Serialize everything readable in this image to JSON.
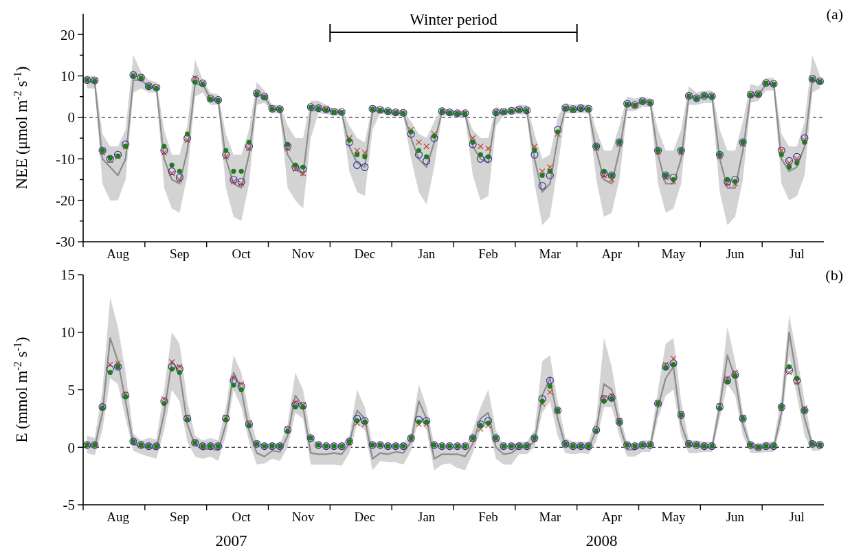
{
  "chart_data": [
    {
      "type": "line",
      "title": "(a)",
      "ylabel": "NEE (μmol m$^{-2}$ s$^{-1}$)",
      "categories": [
        null,
        null,
        null,
        null,
        "Aug",
        null,
        null,
        null,
        null,
        null,
        null,
        null,
        "Sep",
        null,
        null,
        null,
        null,
        null,
        null,
        null,
        "Oct",
        null,
        null,
        null,
        null,
        null,
        null,
        null,
        "Nov",
        null,
        null,
        null,
        null,
        null,
        null,
        null,
        "Dec",
        null,
        null,
        null,
        null,
        null,
        null,
        null,
        "Jan",
        null,
        null,
        null,
        null,
        null,
        null,
        null,
        "Feb",
        null,
        null,
        null,
        null,
        null,
        null,
        null,
        "Mar",
        null,
        null,
        null,
        null,
        null,
        null,
        null,
        "Apr",
        null,
        null,
        null,
        null,
        null,
        null,
        null,
        "May",
        null,
        null,
        null,
        null,
        null,
        null,
        null,
        "Jun",
        null,
        null,
        null,
        null,
        null,
        null,
        null,
        "Jul",
        null,
        null,
        null
      ],
      "ylim": [
        -30,
        25
      ],
      "yticks": [
        -30,
        {
          "value": -25,
          "label": null
        },
        -20,
        {
          "value": -15,
          "label": null
        },
        -10,
        {
          "value": -5,
          "label": null
        },
        0,
        {
          "value": 5,
          "label": null
        },
        10,
        {
          "value": 15,
          "label": null
        },
        20
      ],
      "ref_lines": [
        {
          "axis": "y",
          "value": 0,
          "line_style": "dashed"
        }
      ],
      "annotations": [
        "Winter period"
      ],
      "series": [
        {
          "marker": "none",
          "color": "#8c8c8c",
          "values": [
            8.5,
            8.5,
            -10,
            -12,
            -14,
            -10,
            9,
            9,
            7.5,
            7,
            -10,
            -15,
            -16,
            -8,
            8,
            8,
            4.5,
            4,
            -10,
            -16,
            -17,
            -9,
            5.5,
            5,
            2,
            1.9,
            -9,
            -12,
            -14,
            1.5,
            2,
            1.8,
            1.3,
            1.2,
            -7,
            -11,
            -12,
            1.5,
            1.7,
            1.2,
            1.0,
            1.0,
            -5,
            -10,
            -12,
            -6,
            1.2,
            1.0,
            0.8,
            0.8,
            -7,
            -10,
            -11,
            1,
            1.2,
            1.4,
            1.8,
            1.5,
            -10,
            -18,
            -16,
            -5,
            2,
            1.8,
            2.0,
            2.0,
            -8,
            -15,
            -16,
            -8,
            3,
            3,
            3.8,
            3.5,
            -9,
            -16,
            -16,
            -10,
            5,
            4.5,
            5,
            5,
            -10,
            -17,
            -17,
            -8,
            5.2,
            5.4,
            8,
            8,
            -10,
            -13,
            -12,
            -7,
            9,
            8.5
          ],
          "lower": [
            7,
            7,
            -16,
            -20,
            -20,
            -15,
            6,
            7,
            6,
            6,
            -17,
            -22,
            -23,
            -14,
            5,
            6,
            3,
            3,
            -17,
            -24,
            -25,
            -16,
            3,
            3.5,
            1,
            1,
            -17,
            -20,
            -22,
            -5,
            1,
            0.8,
            0.5,
            0.5,
            -13,
            -18,
            -19,
            -3,
            1,
            0.5,
            0.3,
            0.3,
            -10,
            -18,
            -21,
            -12,
            0.5,
            0.3,
            0,
            0,
            -14,
            -20,
            -19,
            -2,
            0.5,
            0.6,
            0.8,
            0.5,
            -16,
            -26,
            -24,
            -12,
            1,
            1,
            1,
            1,
            -15,
            -24,
            -23,
            -15,
            1.5,
            1.5,
            2.5,
            2.5,
            -16,
            -23,
            -22,
            -16,
            3,
            3,
            3.5,
            3.5,
            -18,
            -26,
            -24,
            -15,
            3.5,
            4,
            6.5,
            6.5,
            -16,
            -20,
            -19,
            -14,
            6,
            7
          ],
          "upper": [
            10,
            10,
            -4,
            -7,
            -7,
            -3,
            15,
            11,
            9,
            8.5,
            -3,
            -9,
            -9,
            -2,
            14,
            9,
            6,
            5.5,
            -4,
            -9,
            -9,
            -3,
            8.5,
            6.5,
            3,
            3,
            -2,
            -5,
            -5,
            4,
            4,
            3,
            2,
            2,
            -2,
            -5,
            -6,
            3,
            2.5,
            2,
            1.8,
            1.8,
            -1,
            -4,
            -5,
            -1,
            2.5,
            1.8,
            1.5,
            1.5,
            -3,
            -5,
            -5,
            2.5,
            2,
            2.2,
            3,
            3,
            -4,
            -10,
            -9,
            0,
            3.5,
            3,
            3.2,
            3,
            -3,
            -8,
            -8,
            -2,
            5,
            4.5,
            5,
            4.5,
            -3,
            -8,
            -8,
            -3,
            7.5,
            6,
            6.5,
            6.5,
            -3,
            -8,
            -8,
            -1,
            8,
            7.5,
            9.5,
            9.5,
            -4,
            -7,
            -7,
            -1,
            15,
            10
          ]
        },
        {
          "type": "scatter",
          "marker": "circle",
          "color": "#2a2a9a",
          "values": [
            9.0,
            8.9,
            -8,
            -10,
            -9,
            -6.5,
            10.2,
            9.6,
            7.5,
            7.2,
            -8,
            -13,
            -14.5,
            -5,
            9,
            8.2,
            4.5,
            4.2,
            -9,
            -15,
            -15.5,
            -7,
            5.8,
            5.0,
            2.1,
            2.0,
            -7,
            -12,
            -12.5,
            2.5,
            2.2,
            1.9,
            1.4,
            1.3,
            -6,
            -11.5,
            -12,
            2.1,
            1.8,
            1.5,
            1.2,
            1.1,
            -4,
            -9,
            -10.5,
            -5,
            1.5,
            1.2,
            1.0,
            1.0,
            -6.5,
            -10,
            -10,
            1.2,
            1.4,
            1.6,
            1.9,
            1.7,
            -9,
            -16.5,
            -14,
            -3,
            2.3,
            2.0,
            2.2,
            2.1,
            -7,
            -13.5,
            -14,
            -6,
            3.3,
            3.0,
            3.9,
            3.6,
            -8,
            -14,
            -14.5,
            -8,
            5.2,
            4.6,
            5.2,
            5.1,
            -9,
            -15.5,
            -15,
            -6,
            5.5,
            5.6,
            8.3,
            8.1,
            -8,
            -10.5,
            -9.5,
            -5,
            9.3,
            8.7
          ]
        },
        {
          "type": "scatter",
          "marker": "cross",
          "color": "#b83a2a",
          "values": [
            9.1,
            9.0,
            -8.5,
            -10.3,
            -9.5,
            -7,
            10.3,
            9.7,
            7.6,
            7.3,
            -8.5,
            -13.5,
            -15,
            -5.5,
            9.5,
            8.3,
            4.5,
            4.2,
            -9.5,
            -15.5,
            -16,
            -7.5,
            5.9,
            5.1,
            2.1,
            2.0,
            -7.5,
            -12.5,
            -13.5,
            2.5,
            2.3,
            2.0,
            1.4,
            1.3,
            -5,
            -8,
            -8.5,
            2.1,
            1.8,
            1.5,
            1.2,
            1.1,
            -3,
            -6,
            -7,
            -4,
            1.5,
            1.2,
            1.0,
            1.0,
            -5,
            -7,
            -7.5,
            1.2,
            1.4,
            1.6,
            1.9,
            1.7,
            -7,
            -13,
            -12,
            -4,
            2.1,
            1.8,
            2.2,
            2.1,
            -7.5,
            -14,
            -15,
            -6.5,
            3.2,
            2.9,
            3.9,
            3.6,
            -8.5,
            -14.5,
            -15.5,
            -8.5,
            5.3,
            4.7,
            5.3,
            5.2,
            -9.5,
            -16,
            -16,
            -6.5,
            5.6,
            5.7,
            8.3,
            8.1,
            -8,
            -11,
            -10,
            -5.5,
            9.4,
            8.8
          ]
        },
        {
          "type": "scatter",
          "marker": "circle",
          "color": "#1e7b1e",
          "values": [
            9.0,
            8.8,
            -8,
            -9.8,
            -9.3,
            -7,
            10,
            9.5,
            7.4,
            7.0,
            -7,
            -11.5,
            -13,
            -4,
            8.5,
            8.0,
            4.4,
            4.1,
            -8,
            -13,
            -13,
            -6,
            5.7,
            4.9,
            2.0,
            1.9,
            -6.5,
            -11.5,
            -12,
            2.4,
            2.1,
            1.8,
            1.3,
            1.2,
            -5.5,
            -9,
            -9.5,
            2.0,
            1.7,
            1.4,
            1.1,
            1.0,
            -3.5,
            -8,
            -9.5,
            -4.5,
            1.4,
            1.1,
            0.9,
            0.9,
            -6,
            -9,
            -9.5,
            1.1,
            1.3,
            1.5,
            1.8,
            1.6,
            -8,
            -14,
            -13,
            -3.5,
            2.2,
            1.9,
            2.1,
            2.0,
            -7,
            -13,
            -14,
            -6,
            3.2,
            2.9,
            3.8,
            3.5,
            -8,
            -14,
            -15,
            -8,
            5.1,
            4.5,
            5.2,
            5.0,
            -9,
            -15,
            -15.5,
            -6,
            5.4,
            5.5,
            8.2,
            8.0,
            -9,
            -12,
            -11,
            -6,
            9.2,
            8.6
          ]
        }
      ]
    },
    {
      "type": "line",
      "title": "(b)",
      "ylabel": "E (mmol m$^{-2}$ s$^{-1}$)",
      "categories": [
        null,
        null,
        null,
        null,
        "Aug",
        null,
        null,
        null,
        null,
        null,
        null,
        null,
        "Sep",
        null,
        null,
        null,
        null,
        null,
        null,
        null,
        "Oct",
        null,
        null,
        null,
        null,
        null,
        null,
        null,
        "Nov",
        null,
        null,
        null,
        null,
        null,
        null,
        null,
        "Dec",
        null,
        null,
        null,
        null,
        null,
        null,
        null,
        "Jan",
        null,
        null,
        null,
        null,
        null,
        null,
        null,
        "Feb",
        null,
        null,
        null,
        null,
        null,
        null,
        null,
        "Mar",
        null,
        null,
        null,
        null,
        null,
        null,
        null,
        "Apr",
        null,
        null,
        null,
        null,
        null,
        null,
        null,
        "May",
        null,
        null,
        null,
        null,
        null,
        null,
        null,
        "Jun",
        null,
        null,
        null,
        null,
        null,
        null,
        null,
        "Jul",
        null,
        null,
        null
      ],
      "ylim": [
        -5,
        15
      ],
      "yticks": [
        -5,
        0,
        5,
        10,
        15
      ],
      "ref_lines": [
        {
          "axis": "y",
          "value": 0,
          "line_style": "dashed"
        }
      ],
      "annotations": [
        "2007",
        "2008"
      ],
      "series": [
        {
          "marker": "none",
          "color": "#8c8c8c",
          "values": [
            0.1,
            0,
            3,
            9.5,
            7.5,
            4,
            0.3,
            0,
            0,
            -0.2,
            3,
            7.5,
            6.5,
            2,
            0.2,
            -0.2,
            -0.1,
            -0.3,
            2,
            6.5,
            5,
            1.5,
            -0.5,
            -0.8,
            -0.3,
            -0.4,
            1,
            4.5,
            3.5,
            -0.5,
            -0.6,
            -0.6,
            -0.5,
            -0.6,
            0.3,
            3.2,
            2.5,
            -1,
            -0.5,
            -0.6,
            -0.4,
            -0.5,
            0.5,
            4,
            2.5,
            -1,
            -0.6,
            -0.6,
            -0.6,
            -0.8,
            0.3,
            2.5,
            3,
            0,
            -0.6,
            -0.5,
            0,
            0,
            0.5,
            4.5,
            6,
            2.5,
            0.1,
            0,
            0,
            -0.1,
            1.5,
            5.5,
            5,
            2,
            -0.2,
            -0.2,
            0.1,
            0.1,
            3.5,
            6,
            7,
            2,
            0.1,
            0.1,
            0,
            0,
            3.5,
            8,
            6,
            2,
            0,
            -0.1,
            0,
            0,
            3,
            10,
            6,
            2.5,
            0.2,
            0.1
          ],
          "lower": [
            -0.5,
            -0.7,
            1.5,
            6,
            5.5,
            2.5,
            -0.3,
            -0.6,
            -0.8,
            -1,
            1.5,
            5,
            4,
            0.5,
            -0.8,
            -1,
            -0.8,
            -1.2,
            1,
            5,
            3.5,
            0.5,
            -1.5,
            -1.4,
            -1,
            -1.2,
            0,
            3,
            2.5,
            -1.5,
            -1.5,
            -1.5,
            -1.5,
            -1.6,
            -0.5,
            2,
            1.5,
            -2,
            -1.2,
            -1.3,
            -1.3,
            -1.5,
            -0.3,
            2.5,
            1.5,
            -2,
            -1.5,
            -1.4,
            -1.8,
            -2,
            -0.5,
            1.5,
            2,
            -1,
            -1.5,
            -1.5,
            -0.6,
            -0.6,
            0,
            3,
            4,
            1,
            -0.5,
            -0.6,
            -0.5,
            -0.6,
            0.5,
            3.5,
            3.5,
            1,
            -0.8,
            -0.8,
            -0.4,
            -0.4,
            2.5,
            4.5,
            5,
            1,
            -0.5,
            -0.5,
            -0.4,
            -0.4,
            2.5,
            5.5,
            4.5,
            1,
            -0.5,
            -0.5,
            -0.4,
            -0.4,
            2,
            8,
            4.5,
            1,
            -0.3,
            -0.3
          ],
          "upper": [
            1,
            0.8,
            5,
            13,
            10.5,
            6.5,
            1.2,
            0.6,
            0.8,
            0.7,
            5,
            10,
            9,
            4,
            1,
            0.6,
            0.8,
            0.6,
            3.5,
            8,
            6.5,
            3,
            0.5,
            0.2,
            0.4,
            0.3,
            2,
            6.5,
            5,
            1,
            0.3,
            0.2,
            0.2,
            0.2,
            1,
            5,
            3.5,
            0.3,
            0.3,
            0.2,
            0.3,
            0.3,
            1.2,
            5.5,
            3.5,
            0.2,
            0.2,
            0.2,
            0,
            0,
            1.5,
            3.5,
            5,
            1.5,
            0.1,
            0.2,
            0.5,
            0.5,
            1.5,
            7.5,
            8,
            4,
            0.8,
            0.5,
            0.5,
            0.5,
            2.5,
            9.5,
            7,
            3,
            0.4,
            0.3,
            0.6,
            0.6,
            5,
            9,
            9.5,
            4,
            0.6,
            0.6,
            0.5,
            0.5,
            4.5,
            10.5,
            7.5,
            3,
            0.4,
            0.3,
            0.5,
            0.5,
            4.5,
            11.5,
            8,
            4,
            0.6,
            0.5
          ]
        },
        {
          "type": "scatter",
          "marker": "circle",
          "color": "#2a2a9a",
          "values": [
            0.2,
            0.2,
            3.5,
            6.8,
            7,
            4.5,
            0.5,
            0.2,
            0.1,
            0.1,
            4,
            7,
            6.8,
            2.5,
            0.4,
            0.1,
            0.1,
            0.1,
            2.5,
            5.8,
            5.3,
            2.0,
            0.3,
            0.1,
            0.1,
            0.1,
            1.5,
            3.7,
            3.6,
            0.8,
            0.2,
            0.1,
            0.1,
            0.1,
            0.5,
            2.5,
            2.3,
            0.2,
            0.2,
            0.1,
            0.1,
            0.1,
            0.8,
            2.4,
            2.3,
            0.2,
            0.1,
            0.1,
            0.1,
            0.1,
            0.8,
            2.0,
            2.3,
            0.8,
            0.1,
            0.1,
            0.1,
            0.1,
            0.8,
            4.2,
            5.8,
            3.2,
            0.3,
            0.1,
            0.1,
            0.1,
            1.5,
            4.2,
            4.3,
            2.2,
            0.2,
            0.1,
            0.2,
            0.2,
            3.8,
            7,
            7.3,
            2.8,
            0.3,
            0.2,
            0.1,
            0.1,
            3.5,
            5.8,
            6.3,
            2.5,
            0.2,
            0.0,
            0.1,
            0.1,
            3.5,
            6.7,
            5.8,
            3.2,
            0.3,
            0.2
          ]
        },
        {
          "type": "scatter",
          "marker": "cross",
          "color": "#b83a2a",
          "values": [
            0.2,
            0.2,
            3.5,
            7.2,
            7.3,
            4.6,
            0.5,
            0.2,
            0.1,
            0.1,
            4.2,
            7.4,
            7,
            2.6,
            0.4,
            0.1,
            0.1,
            0.1,
            2.6,
            6,
            5.5,
            2.1,
            0.3,
            0.1,
            0.1,
            0.1,
            1.6,
            3.9,
            3.7,
            0.8,
            0.2,
            0.1,
            0.1,
            0.1,
            0.4,
            2.1,
            2.0,
            0.2,
            0.2,
            0.1,
            0.1,
            0.1,
            0.7,
            2.0,
            2.0,
            0.2,
            0.1,
            0.1,
            0.1,
            0.1,
            0.7,
            1.6,
            1.9,
            0.7,
            0.1,
            0.1,
            0.1,
            0.1,
            0.7,
            3.8,
            4.8,
            3.2,
            0.3,
            0.1,
            0.1,
            0.1,
            1.5,
            4.3,
            4.5,
            2.3,
            0.2,
            0.1,
            0.2,
            0.2,
            3.9,
            7.2,
            7.7,
            2.9,
            0.3,
            0.2,
            0.1,
            0.1,
            3.6,
            6,
            6.5,
            2.6,
            0.2,
            0.0,
            0.1,
            0.1,
            3.4,
            6.5,
            5.7,
            3.4,
            0.3,
            0.2
          ]
        },
        {
          "type": "scatter",
          "marker": "circle",
          "color": "#1e7b1e",
          "values": [
            0.2,
            0.2,
            3.4,
            6.5,
            7,
            4.4,
            0.5,
            0.2,
            0.1,
            0.1,
            3.8,
            6.8,
            6.5,
            2.4,
            0.4,
            0.1,
            0.1,
            0.1,
            2.4,
            5.4,
            5,
            1.9,
            0.3,
            0.1,
            0.1,
            0.1,
            1.4,
            3.5,
            3.5,
            0.8,
            0.2,
            0.1,
            0.1,
            0.1,
            0.5,
            2.3,
            2.2,
            0.2,
            0.2,
            0.1,
            0.1,
            0.1,
            0.8,
            2.2,
            2.2,
            0.2,
            0.1,
            0.1,
            0.1,
            0.1,
            0.8,
            1.9,
            2.1,
            0.8,
            0.1,
            0.1,
            0.1,
            0.1,
            0.8,
            4,
            5.3,
            3.2,
            0.3,
            0.1,
            0.1,
            0.1,
            1.4,
            4.0,
            4.2,
            2.2,
            0.2,
            0.1,
            0.2,
            0.2,
            3.8,
            6.9,
            7.2,
            2.8,
            0.3,
            0.2,
            0.1,
            0.1,
            3.4,
            5.7,
            6.2,
            2.5,
            0.2,
            0.0,
            0.1,
            0.1,
            3.5,
            7,
            6,
            3.2,
            0.3,
            0.2
          ]
        }
      ]
    }
  ]
}
